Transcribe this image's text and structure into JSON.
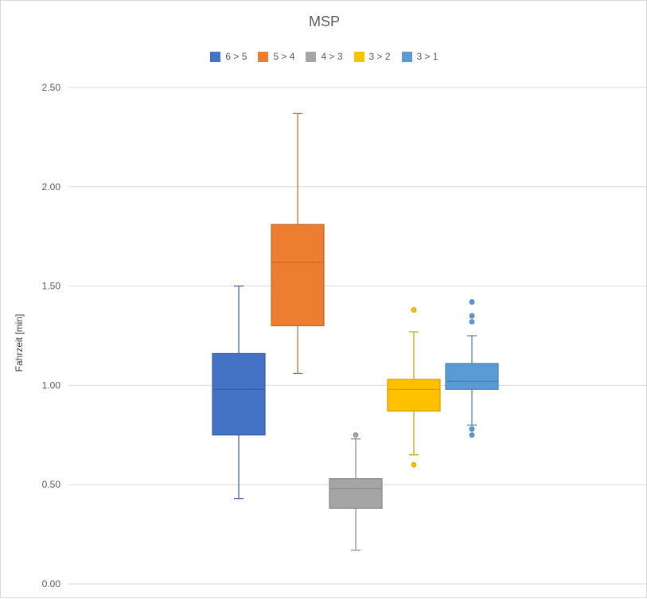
{
  "chart_data": {
    "type": "boxplot",
    "title": "MSP",
    "ylabel": "Fahrzeit [min]",
    "xlabel": "",
    "ylim": [
      0,
      2.5
    ],
    "yticks": [
      "0.00",
      "0.50",
      "1.00",
      "1.50",
      "2.00",
      "2.50"
    ],
    "grid": true,
    "legend_position": "top",
    "series": [
      {
        "name": "6 > 5",
        "color": "#4472c4",
        "min": 0.43,
        "q1": 0.75,
        "median": 0.98,
        "q3": 1.16,
        "max": 1.5,
        "outliers": []
      },
      {
        "name": "5 > 4",
        "color": "#ed7d31",
        "min": 1.06,
        "q1": 1.3,
        "median": 1.62,
        "q3": 1.81,
        "max": 2.37,
        "outliers": []
      },
      {
        "name": "4 > 3",
        "color": "#a5a5a5",
        "min": 0.17,
        "q1": 0.38,
        "median": 0.48,
        "q3": 0.53,
        "max": 0.73,
        "outliers": [
          0.75
        ]
      },
      {
        "name": "3 > 2",
        "color": "#ffc000",
        "min": 0.65,
        "q1": 0.87,
        "median": 0.98,
        "q3": 1.03,
        "max": 1.27,
        "outliers": [
          1.38,
          0.6
        ]
      },
      {
        "name": "3 > 1",
        "color": "#5b9bd5",
        "min": 0.8,
        "q1": 0.98,
        "median": 1.02,
        "q3": 1.11,
        "max": 1.25,
        "outliers": [
          1.42,
          1.35,
          1.32,
          0.78,
          0.75
        ]
      }
    ]
  }
}
